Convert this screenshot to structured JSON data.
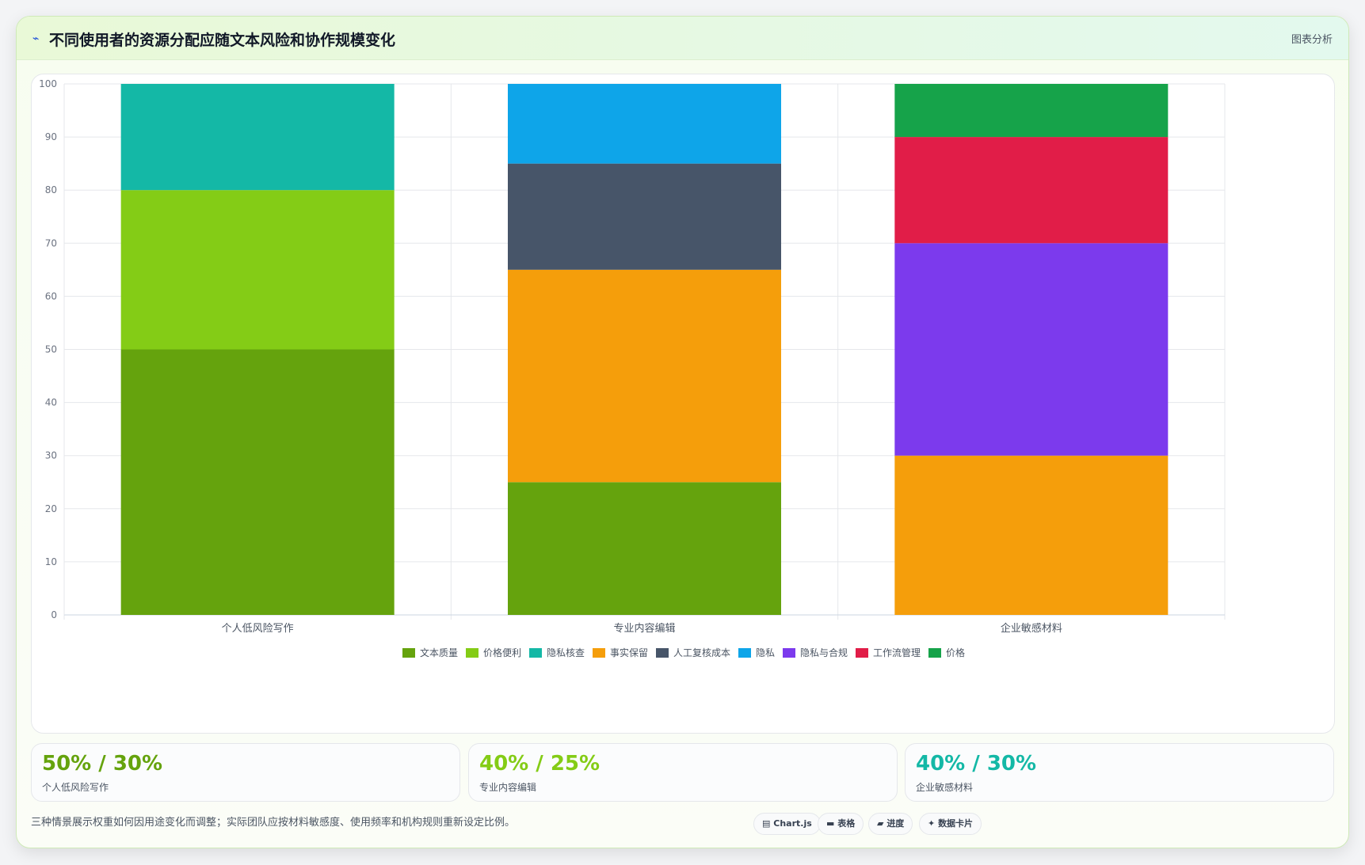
{
  "header": {
    "icon": "chart-icon",
    "title": "不同使用者的资源分配应随文本风险和协作规模变化",
    "tag": "图表分析"
  },
  "chart_data": {
    "type": "bar",
    "stacked": true,
    "categories": [
      "个人低风险写作",
      "专业内容编辑",
      "企业敏感材料"
    ],
    "ylim": [
      0,
      100
    ],
    "yticks": [
      0,
      10,
      20,
      30,
      40,
      50,
      60,
      70,
      80,
      90,
      100
    ],
    "grid": true,
    "legend_position": "bottom",
    "series": [
      {
        "name": "文本质量",
        "color": "#65a30d",
        "values": [
          50,
          25,
          0
        ]
      },
      {
        "name": "价格便利",
        "color": "#84cc16",
        "values": [
          30,
          0,
          0
        ]
      },
      {
        "name": "隐私核查",
        "color": "#14b8a6",
        "values": [
          20,
          0,
          0
        ]
      },
      {
        "name": "事实保留",
        "color": "#f59e0b",
        "values": [
          0,
          40,
          30
        ]
      },
      {
        "name": "人工复核成本",
        "color": "#475569",
        "values": [
          0,
          20,
          0
        ]
      },
      {
        "name": "隐私",
        "color": "#0ea5e9",
        "values": [
          0,
          15,
          0
        ]
      },
      {
        "name": "隐私与合规",
        "color": "#7c3aed",
        "values": [
          0,
          0,
          40
        ]
      },
      {
        "name": "工作流管理",
        "color": "#e11d48",
        "values": [
          0,
          0,
          20
        ]
      },
      {
        "name": "价格",
        "color": "#16a34a",
        "values": [
          0,
          0,
          10
        ]
      }
    ]
  },
  "stats": [
    {
      "value": "50% / 30%",
      "label": "个人低风险写作",
      "color": "#65a30d"
    },
    {
      "value": "40% / 25%",
      "label": "专业内容编辑",
      "color": "#84cc16"
    },
    {
      "value": "40% / 30%",
      "label": "企业敏感材料",
      "color": "#14b8a6"
    }
  ],
  "footnote": "三种情景展示权重如何因用途变化而调整；实际团队应按材料敏感度、使用频率和机构规则重新设定比例。",
  "pills": [
    {
      "icon": "chart-icon",
      "label": "Chart.js"
    },
    {
      "icon": "table-icon",
      "label": "表格"
    },
    {
      "icon": "progress-icon",
      "label": "进度"
    },
    {
      "icon": "card-icon",
      "label": "数据卡片"
    }
  ]
}
